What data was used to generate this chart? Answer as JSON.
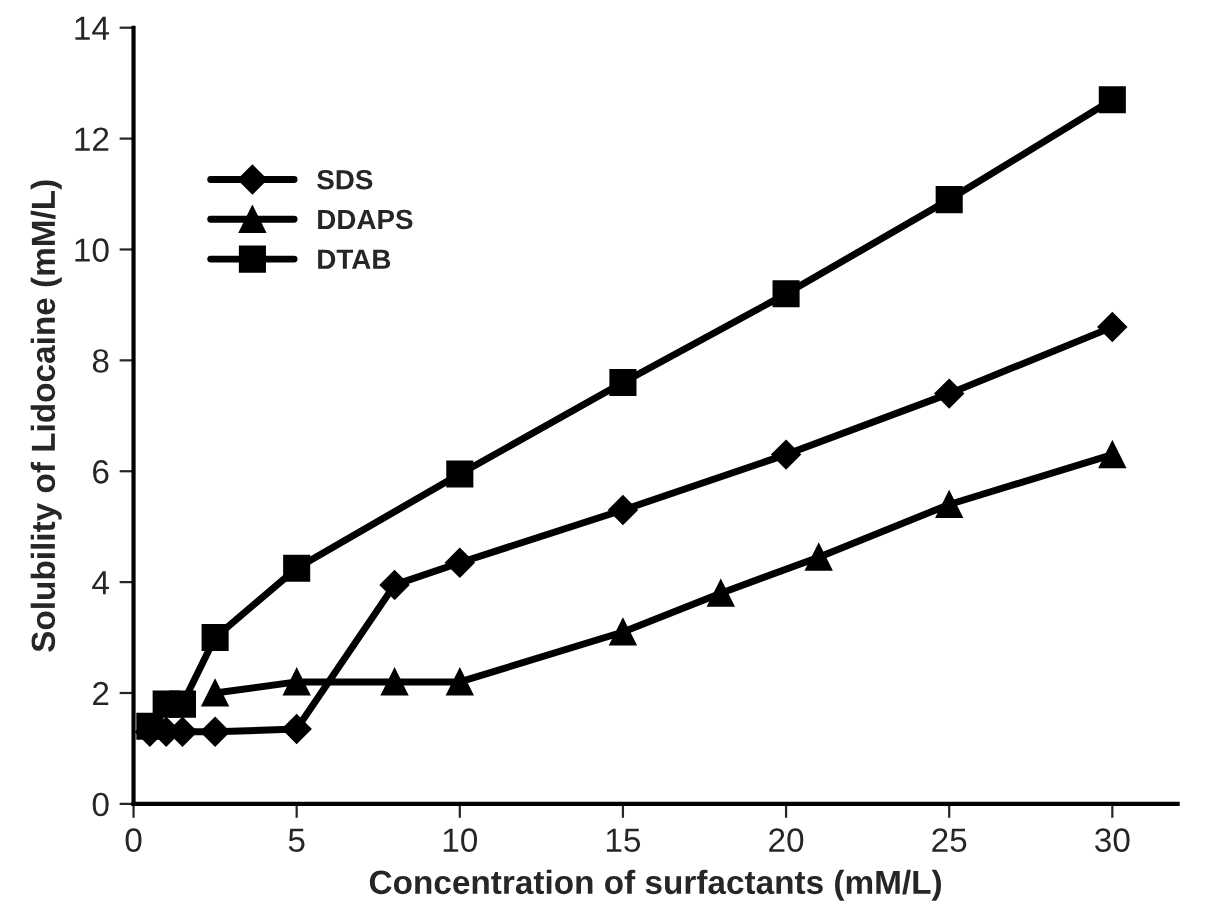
{
  "chart_data": {
    "type": "line",
    "xlabel": "Concentration of surfactants (mM/L)",
    "ylabel": "Solubility of Lidocaine (mM/L)",
    "xlim": [
      0,
      32
    ],
    "xticks": [
      0,
      5,
      10,
      15,
      20,
      25,
      30
    ],
    "ylim": [
      0,
      14
    ],
    "yticks": [
      0,
      2,
      4,
      6,
      8,
      10,
      12,
      14
    ],
    "grid": false,
    "legend": "top left",
    "line_style": "solid",
    "series": [
      {
        "name": "SDS",
        "color": "#000000",
        "marker": "diamond",
        "x": [
          0.5,
          1,
          1.5,
          2.5,
          5,
          8,
          10,
          15,
          20,
          25,
          30
        ],
        "values": [
          1.3,
          1.3,
          1.3,
          1.3,
          1.35,
          3.95,
          4.35,
          5.3,
          6.3,
          7.4,
          8.6
        ]
      },
      {
        "name": "DDAPS",
        "color": "#000000",
        "marker": "triangle",
        "x": [
          2.5,
          5,
          8,
          10,
          15,
          18,
          21,
          25,
          30
        ],
        "values": [
          2.0,
          2.2,
          2.2,
          2.2,
          3.1,
          3.8,
          4.45,
          5.4,
          6.3
        ]
      },
      {
        "name": "DTAB",
        "color": "#000000",
        "marker": "square",
        "x": [
          0.5,
          1,
          1.5,
          2.5,
          5,
          10,
          15,
          20,
          25,
          30
        ],
        "values": [
          1.4,
          1.8,
          1.8,
          3.0,
          4.25,
          5.95,
          7.6,
          9.2,
          10.9,
          12.7
        ]
      }
    ]
  }
}
